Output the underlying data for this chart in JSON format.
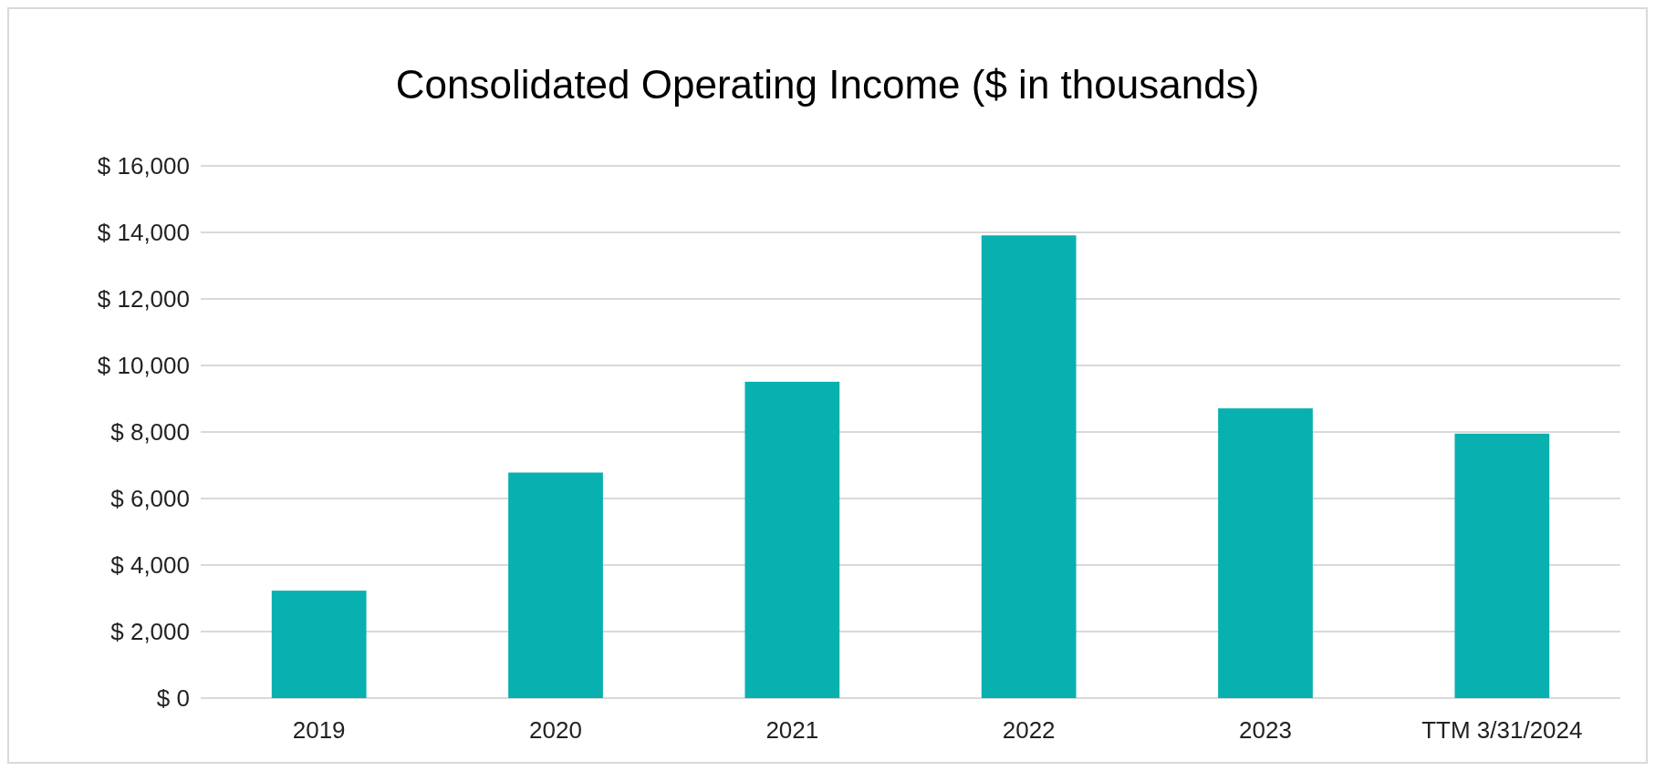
{
  "chart_data": {
    "type": "bar",
    "title": "Consolidated Operating Income ($ in thousands)",
    "categories": [
      "2019",
      "2020",
      "2021",
      "2022",
      "2023",
      "TTM 3/31/2024"
    ],
    "values": [
      3230,
      6780,
      9510,
      13910,
      8710,
      7950
    ],
    "color": "#08b0b0",
    "ylim": [
      0,
      16000
    ],
    "yticks": [
      {
        "value": 0,
        "label": "$ 0"
      },
      {
        "value": 2000,
        "label": "$ 2,000"
      },
      {
        "value": 4000,
        "label": "$ 4,000"
      },
      {
        "value": 6000,
        "label": "$ 6,000"
      },
      {
        "value": 8000,
        "label": "$ 8,000"
      },
      {
        "value": 10000,
        "label": "$ 10,000"
      },
      {
        "value": 12000,
        "label": "$ 12,000"
      },
      {
        "value": 14000,
        "label": "$ 14,000"
      },
      {
        "value": 16000,
        "label": "$ 16,000"
      }
    ],
    "grid": "y"
  }
}
